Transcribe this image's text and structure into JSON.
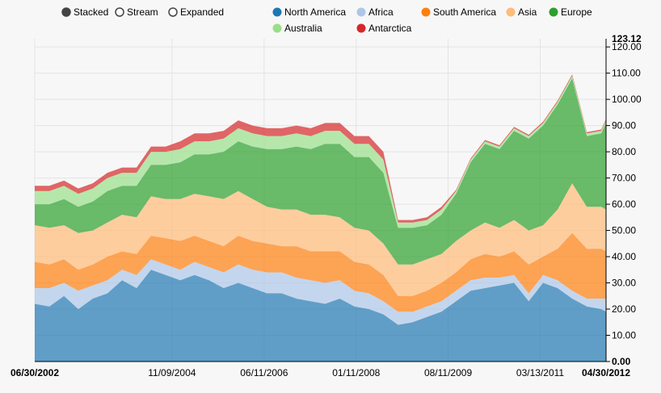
{
  "controls": {
    "modes": [
      {
        "label": "Stacked",
        "selected": true
      },
      {
        "label": "Stream",
        "selected": false
      },
      {
        "label": "Expanded",
        "selected": false
      }
    ]
  },
  "legend": [
    {
      "name": "North America",
      "color": "#1f77b4"
    },
    {
      "name": "Africa",
      "color": "#aec7e8"
    },
    {
      "name": "South America",
      "color": "#ff7f0e"
    },
    {
      "name": "Asia",
      "color": "#ffbb78"
    },
    {
      "name": "Europe",
      "color": "#2ca02c"
    },
    {
      "name": "Australia",
      "color": "#98df8a"
    },
    {
      "name": "Antarctica",
      "color": "#d62728"
    }
  ],
  "chart_data": {
    "type": "area",
    "stacked": true,
    "x": [
      "06/30/2002",
      "09/30/2002",
      "12/31/2002",
      "03/31/2003",
      "06/30/2003",
      "09/30/2003",
      "12/31/2003",
      "03/31/2004",
      "06/30/2004",
      "09/30/2004",
      "12/31/2004",
      "03/31/2005",
      "06/30/2005",
      "09/30/2005",
      "12/31/2005",
      "03/31/2006",
      "06/30/2006",
      "09/30/2006",
      "12/31/2006",
      "03/31/2007",
      "06/30/2007",
      "09/30/2007",
      "12/31/2007",
      "03/31/2008",
      "06/30/2008",
      "09/30/2008",
      "12/31/2008",
      "03/31/2009",
      "06/30/2009",
      "09/30/2009",
      "12/31/2009",
      "03/31/2010",
      "06/30/2010",
      "09/30/2010",
      "12/31/2010",
      "03/31/2011",
      "06/30/2011",
      "09/30/2011",
      "12/31/2011",
      "03/31/2012",
      "04/30/2012"
    ],
    "x_ticks": [
      "06/30/2002",
      "11/09/2004",
      "06/11/2006",
      "01/11/2008",
      "08/11/2009",
      "03/13/2011",
      "04/30/2012"
    ],
    "y_ticks": [
      "0.00",
      "10.00",
      "20.00",
      "30.00",
      "40.00",
      "50.00",
      "60.00",
      "70.00",
      "80.00",
      "90.00",
      "100.00",
      "110.00",
      "120.00"
    ],
    "y_max_label": "123.12",
    "ylim": [
      0,
      123.12
    ],
    "series": [
      {
        "name": "North America",
        "values": [
          22,
          21,
          25,
          20,
          24,
          26,
          31,
          28,
          35,
          33,
          31,
          33,
          31,
          28,
          30,
          28,
          26,
          26,
          24,
          23,
          22,
          24,
          21,
          20,
          18,
          14,
          15,
          17,
          19,
          23,
          27,
          28,
          29,
          30,
          23,
          30,
          28,
          24,
          21,
          20,
          19
        ]
      },
      {
        "name": "Africa",
        "values": [
          6,
          7,
          5,
          7,
          5,
          5,
          4,
          5,
          4,
          4,
          4,
          5,
          5,
          6,
          7,
          7,
          8,
          8,
          8,
          8,
          8,
          7,
          6,
          6,
          5,
          5,
          4,
          4,
          4,
          4,
          4,
          4,
          3,
          3,
          3,
          3,
          3,
          3,
          3,
          4,
          5
        ]
      },
      {
        "name": "South America",
        "values": [
          10,
          9,
          9,
          8,
          8,
          9,
          7,
          8,
          9,
          10,
          11,
          10,
          10,
          10,
          11,
          11,
          11,
          10,
          12,
          11,
          12,
          11,
          11,
          11,
          10,
          6,
          6,
          6,
          7,
          7,
          8,
          9,
          8,
          9,
          11,
          7,
          12,
          22,
          19,
          19,
          18
        ]
      },
      {
        "name": "Asia",
        "values": [
          14,
          14,
          13,
          14,
          13,
          13,
          14,
          14,
          15,
          15,
          16,
          16,
          17,
          18,
          17,
          16,
          14,
          14,
          14,
          14,
          14,
          13,
          13,
          13,
          12,
          12,
          12,
          12,
          11,
          12,
          11,
          12,
          11,
          12,
          13,
          12,
          15,
          19,
          16,
          16,
          16
        ]
      },
      {
        "name": "Europe",
        "values": [
          8,
          9,
          10,
          10,
          11,
          12,
          11,
          12,
          12,
          13,
          14,
          15,
          16,
          18,
          19,
          20,
          22,
          23,
          24,
          25,
          27,
          28,
          27,
          28,
          27,
          14,
          14,
          13,
          15,
          18,
          26,
          30,
          30,
          34,
          35,
          38,
          40,
          40,
          27,
          28,
          33
        ]
      },
      {
        "name": "Australia",
        "values": [
          5,
          5,
          5,
          5,
          5,
          5,
          5,
          5,
          5,
          5,
          5,
          5,
          5,
          5,
          5,
          5,
          5,
          5,
          5,
          5,
          5,
          5,
          5,
          5,
          5,
          2,
          2,
          2,
          2,
          1,
          1,
          1,
          1,
          1,
          1,
          1,
          1,
          1,
          1,
          1,
          1
        ]
      },
      {
        "name": "Antarctica",
        "values": [
          2,
          2,
          2,
          2,
          2,
          2,
          2,
          2,
          2,
          2,
          3,
          3,
          3,
          3,
          3,
          3,
          3,
          3,
          3,
          3,
          3,
          3,
          3,
          3,
          3,
          1,
          1,
          1,
          1,
          0.5,
          0.5,
          0.5,
          0.5,
          0.5,
          0.5,
          0.5,
          0.5,
          0.5,
          0.5,
          0.5,
          0.5
        ]
      }
    ],
    "grid": true,
    "legend_position": "top"
  }
}
